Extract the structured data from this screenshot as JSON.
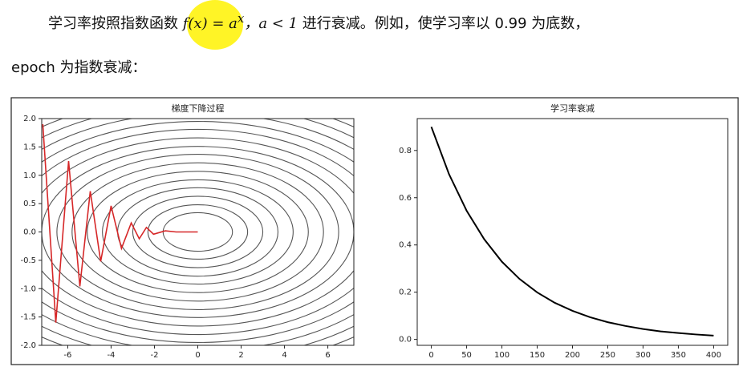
{
  "text": {
    "line1_a": "学习率按照指数函数",
    "line1_math": "f(x) = a",
    "line1_sup": "x",
    "line1_b": "，a < 1",
    "line1_c": "进行衰减。例如，使学习率以 0.99 为底数，",
    "line2": "epoch 为指数衰减："
  },
  "chart_data": [
    {
      "type": "contour",
      "title": "梯度下降过程",
      "xlim": [
        -7.2,
        7.2
      ],
      "ylim": [
        -2.0,
        2.0
      ],
      "xticks": [
        -6,
        -4,
        -2,
        0,
        2,
        4,
        6
      ],
      "yticks": [
        {
          "value": 2.0,
          "label": "2.0"
        },
        1.5,
        {
          "value": 1.0,
          "label": "1.0"
        },
        0.5,
        {
          "value": 0.0,
          "label": "0.0"
        },
        -0.5,
        {
          "value": -1.0,
          "label": "-1.0"
        },
        -1.5,
        {
          "value": -2.0,
          "label": "-2.0"
        }
      ],
      "contours": {
        "color": "#555555",
        "rx": [
          1.6,
          2.3,
          3.0,
          3.7,
          4.4,
          5.1,
          5.8,
          6.5,
          7.2,
          7.9,
          8.6,
          9.3,
          10.0,
          10.7,
          11.4,
          12.1
        ],
        "ry": [
          0.34,
          0.48,
          0.63,
          0.78,
          0.92,
          1.07,
          1.22,
          1.37,
          1.51,
          1.66,
          1.81,
          1.95,
          2.1,
          2.25,
          2.39,
          2.54
        ]
      },
      "series": [
        {
          "color": "#d62728",
          "x": [
            -7.15,
            -6.55,
            -5.96,
            -5.44,
            -4.96,
            -4.48,
            -4.0,
            -3.52,
            -3.07,
            -2.7,
            -2.37,
            -2.04,
            -1.5,
            -1.0,
            0.0
          ],
          "values": [
            1.9,
            -1.6,
            1.25,
            -0.96,
            0.72,
            -0.52,
            0.46,
            -0.29,
            0.16,
            -0.12,
            0.08,
            -0.04,
            0.02,
            0.0,
            0.0
          ]
        }
      ]
    },
    {
      "type": "line",
      "title": "学习率衰减",
      "xlim": [
        -20,
        420
      ],
      "ylim": [
        -0.025,
        0.935
      ],
      "xticks": [
        0,
        50,
        100,
        150,
        200,
        250,
        300,
        350,
        400
      ],
      "yticks": [
        {
          "value": 0.0,
          "label": "0.0"
        },
        0.2,
        0.4,
        0.6,
        0.8
      ],
      "x": [
        0,
        25,
        50,
        75,
        100,
        125,
        150,
        175,
        200,
        225,
        250,
        275,
        300,
        325,
        350,
        375,
        400
      ],
      "series": [
        {
          "color": "#000000",
          "values": [
            0.9,
            0.7,
            0.545,
            0.424,
            0.329,
            0.256,
            0.199,
            0.155,
            0.121,
            0.094,
            0.073,
            0.057,
            0.044,
            0.034,
            0.027,
            0.021,
            0.016
          ]
        }
      ]
    }
  ]
}
